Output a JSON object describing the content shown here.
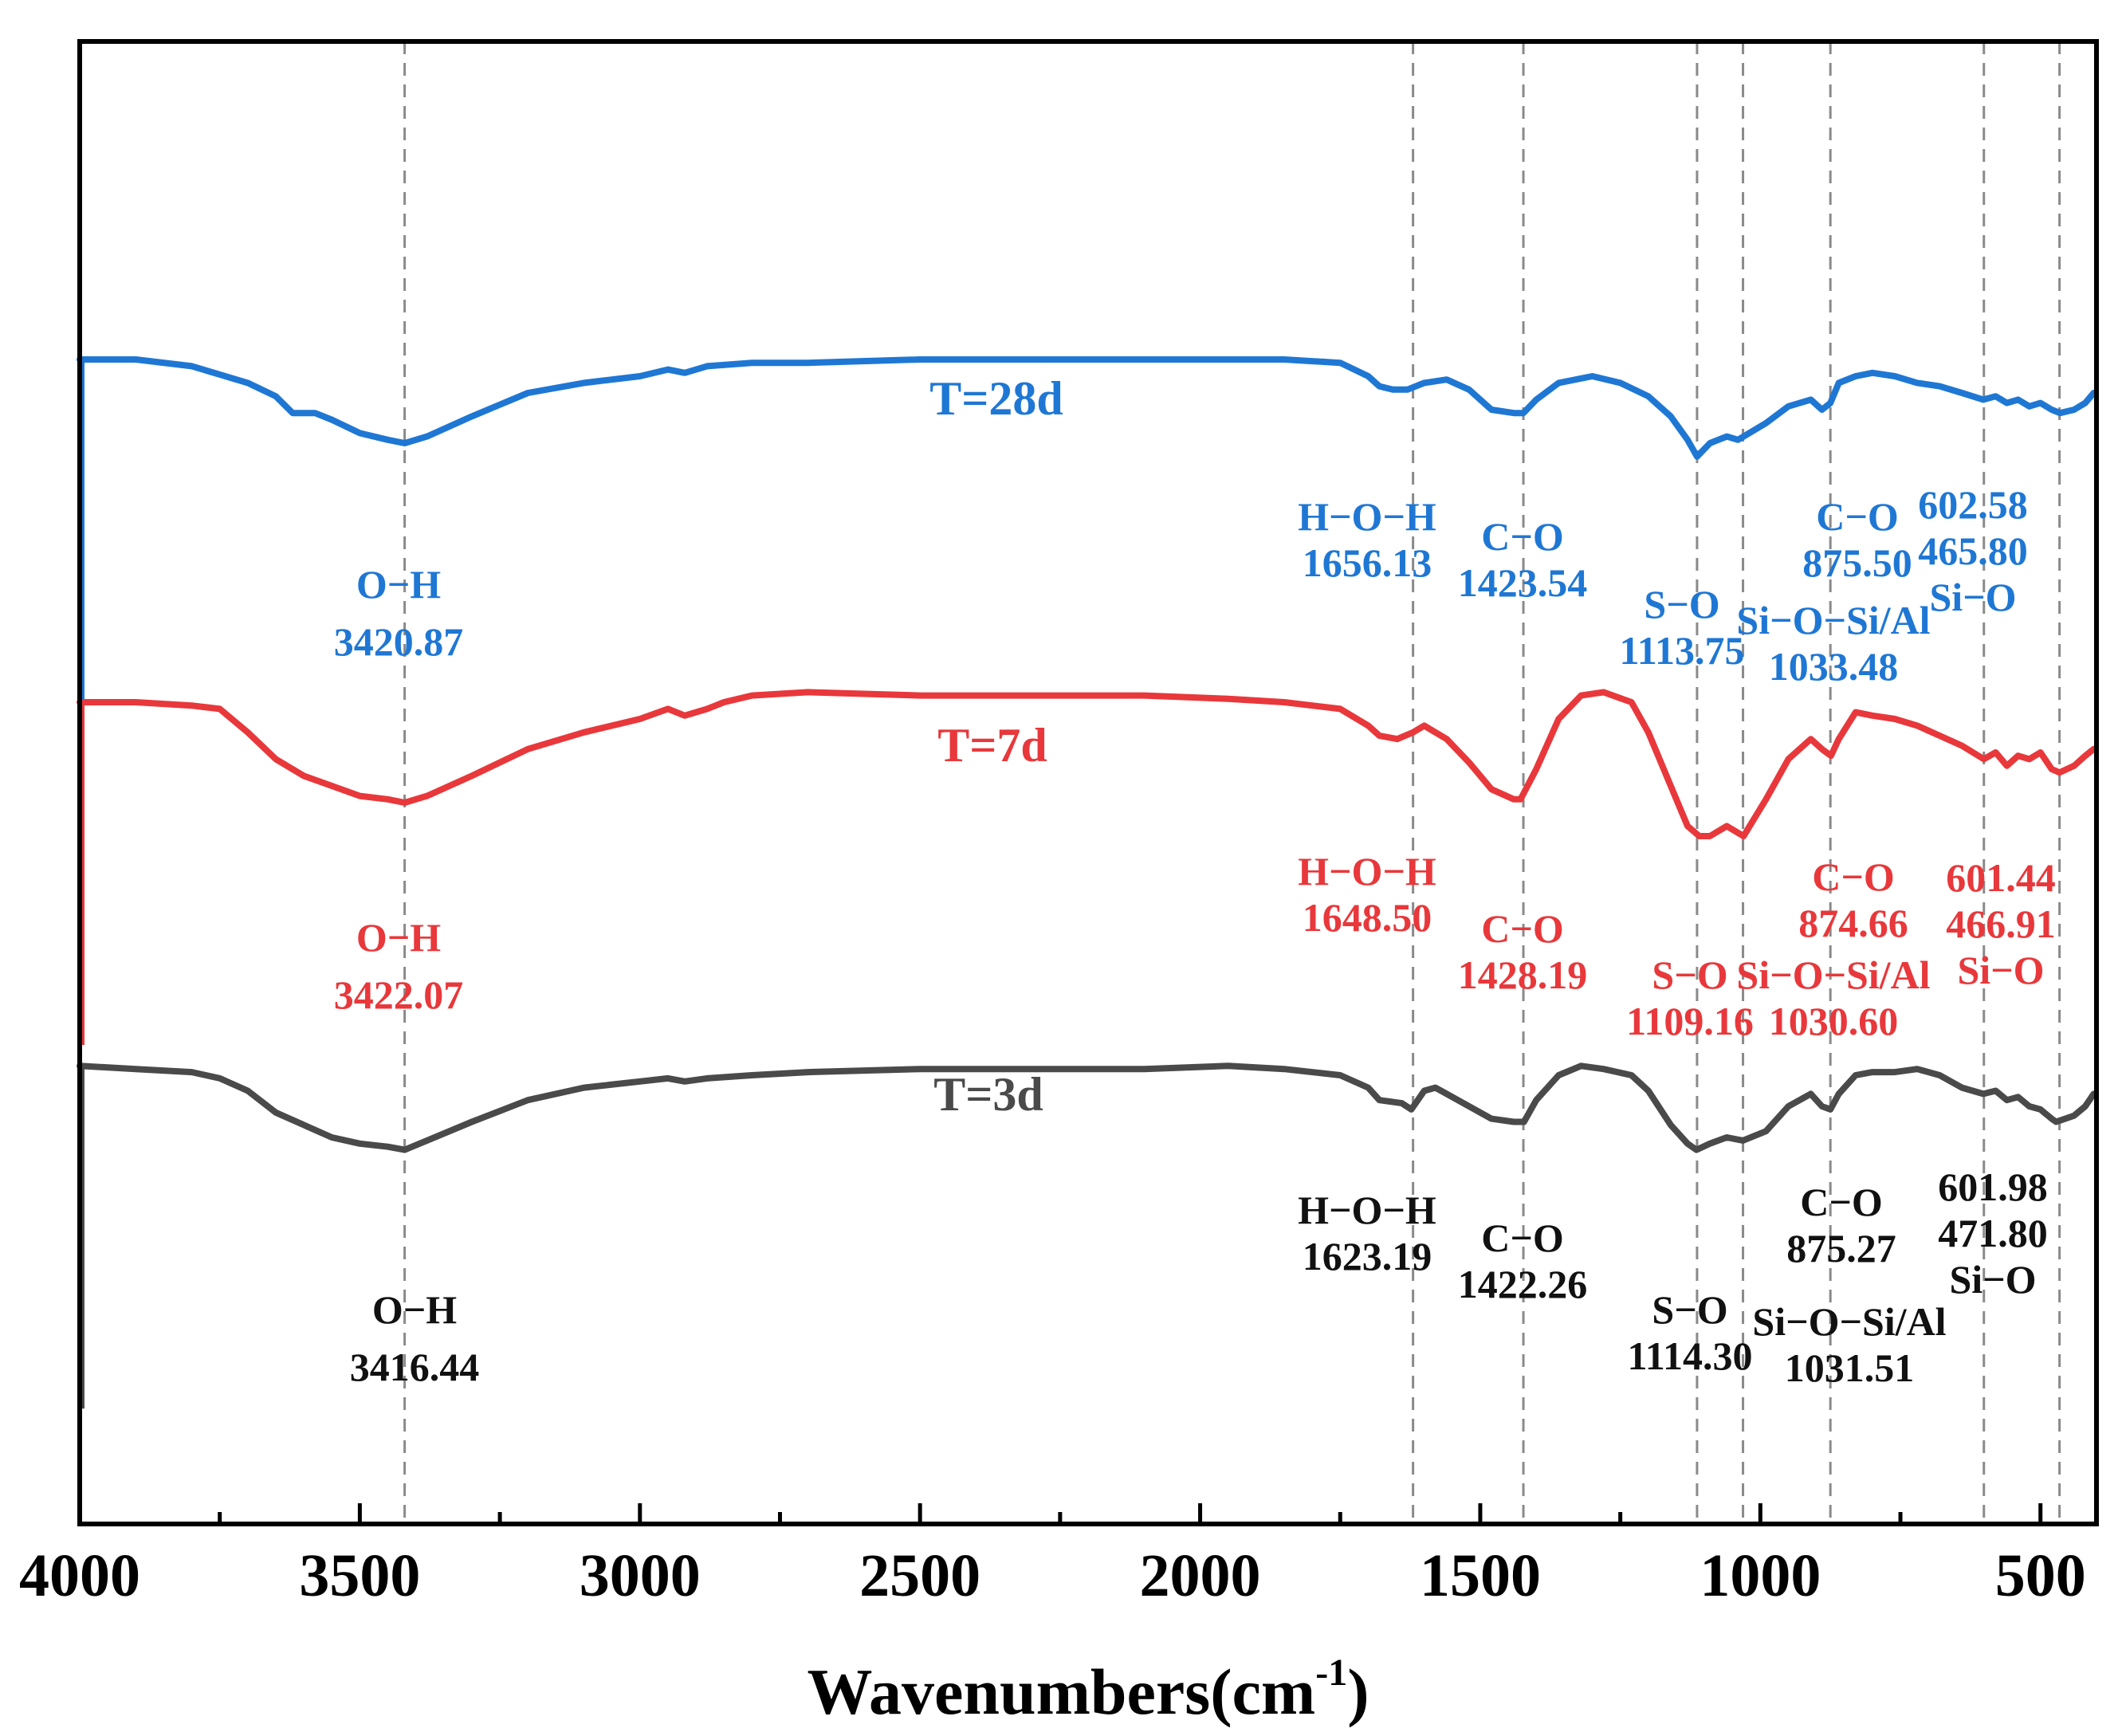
{
  "chart_data": {
    "type": "line",
    "title": "",
    "xlabel": "Wavenumbers(cm",
    "xlabel_sup": "-1",
    "xlabel_close": ")",
    "ylabel": "",
    "xlim": [
      4000,
      400
    ],
    "xticks": [
      4000,
      3500,
      3000,
      2500,
      2000,
      1500,
      1000,
      500
    ],
    "xtick_labels": [
      "4000",
      "3500",
      "3000",
      "2500",
      "2000",
      "1500",
      "1000",
      "500"
    ],
    "yaxis": "arbitrary transmittance (stacked, offset)",
    "reference_lines": [
      3420,
      1620,
      1423,
      1113,
      1031,
      875,
      601,
      466
    ],
    "series": [
      {
        "name": "T=28d",
        "color": "#1f77d4",
        "x": [
          4000,
          3900,
          3800,
          3700,
          3650,
          3620,
          3580,
          3550,
          3500,
          3450,
          3420,
          3380,
          3300,
          3200,
          3100,
          3000,
          2950,
          2920,
          2880,
          2800,
          2700,
          2500,
          2300,
          2100,
          1950,
          1850,
          1750,
          1700,
          1680,
          1656,
          1630,
          1600,
          1560,
          1520,
          1480,
          1440,
          1423,
          1400,
          1360,
          1300,
          1250,
          1200,
          1160,
          1130,
          1113,
          1090,
          1060,
          1040,
          1020,
          990,
          950,
          910,
          890,
          875,
          860,
          830,
          800,
          760,
          720,
          680,
          640,
          602,
          580,
          560,
          540,
          520,
          500,
          480,
          465,
          440,
          420,
          405
        ],
        "y": [
          0.95,
          0.95,
          0.93,
          0.88,
          0.84,
          0.79,
          0.79,
          0.77,
          0.73,
          0.71,
          0.7,
          0.72,
          0.78,
          0.85,
          0.88,
          0.9,
          0.92,
          0.91,
          0.93,
          0.94,
          0.94,
          0.95,
          0.95,
          0.95,
          0.95,
          0.95,
          0.94,
          0.9,
          0.87,
          0.86,
          0.86,
          0.88,
          0.89,
          0.86,
          0.8,
          0.79,
          0.79,
          0.83,
          0.88,
          0.9,
          0.88,
          0.84,
          0.78,
          0.71,
          0.66,
          0.7,
          0.72,
          0.71,
          0.73,
          0.76,
          0.81,
          0.83,
          0.8,
          0.82,
          0.88,
          0.9,
          0.91,
          0.9,
          0.88,
          0.87,
          0.85,
          0.83,
          0.84,
          0.82,
          0.83,
          0.81,
          0.82,
          0.8,
          0.79,
          0.8,
          0.82,
          0.85
        ]
      },
      {
        "name": "T=7d",
        "color": "#e8383b",
        "x": [
          4000,
          3900,
          3800,
          3750,
          3700,
          3650,
          3600,
          3550,
          3500,
          3450,
          3420,
          3380,
          3300,
          3200,
          3100,
          3000,
          2950,
          2920,
          2880,
          2850,
          2800,
          2700,
          2500,
          2300,
          2100,
          1950,
          1850,
          1750,
          1700,
          1680,
          1648,
          1620,
          1600,
          1580,
          1560,
          1520,
          1480,
          1440,
          1428,
          1400,
          1360,
          1320,
          1280,
          1230,
          1200,
          1160,
          1130,
          1109,
          1090,
          1060,
          1040,
          1030,
          990,
          950,
          910,
          890,
          874,
          860,
          830,
          800,
          760,
          720,
          680,
          640,
          601,
          580,
          560,
          540,
          520,
          500,
          480,
          466,
          440,
          420,
          405
        ],
        "y": [
          0.95,
          0.95,
          0.94,
          0.93,
          0.86,
          0.78,
          0.73,
          0.7,
          0.67,
          0.66,
          0.65,
          0.67,
          0.73,
          0.81,
          0.86,
          0.9,
          0.93,
          0.91,
          0.93,
          0.95,
          0.97,
          0.98,
          0.97,
          0.97,
          0.97,
          0.96,
          0.95,
          0.93,
          0.88,
          0.85,
          0.84,
          0.86,
          0.88,
          0.86,
          0.84,
          0.77,
          0.69,
          0.66,
          0.66,
          0.75,
          0.9,
          0.97,
          0.98,
          0.95,
          0.86,
          0.7,
          0.58,
          0.55,
          0.55,
          0.58,
          0.56,
          0.55,
          0.66,
          0.78,
          0.84,
          0.81,
          0.79,
          0.84,
          0.92,
          0.91,
          0.9,
          0.88,
          0.85,
          0.82,
          0.78,
          0.8,
          0.76,
          0.79,
          0.78,
          0.8,
          0.75,
          0.74,
          0.76,
          0.79,
          0.81
        ]
      },
      {
        "name": "T=3d",
        "color": "#4a4a4a",
        "x": [
          4000,
          3900,
          3800,
          3750,
          3700,
          3650,
          3600,
          3550,
          3500,
          3450,
          3420,
          3380,
          3300,
          3200,
          3100,
          3000,
          2950,
          2920,
          2880,
          2800,
          2700,
          2500,
          2300,
          2100,
          1950,
          1850,
          1750,
          1700,
          1680,
          1640,
          1623,
          1600,
          1580,
          1560,
          1520,
          1480,
          1440,
          1422,
          1400,
          1360,
          1320,
          1280,
          1230,
          1200,
          1160,
          1130,
          1114,
          1090,
          1060,
          1031,
          990,
          950,
          910,
          890,
          875,
          860,
          830,
          800,
          760,
          720,
          680,
          640,
          602,
          580,
          560,
          540,
          520,
          500,
          480,
          472,
          440,
          420,
          405
        ],
        "y": [
          0.93,
          0.92,
          0.91,
          0.89,
          0.85,
          0.78,
          0.74,
          0.7,
          0.68,
          0.67,
          0.66,
          0.69,
          0.75,
          0.82,
          0.86,
          0.88,
          0.89,
          0.88,
          0.89,
          0.9,
          0.91,
          0.92,
          0.92,
          0.92,
          0.93,
          0.92,
          0.9,
          0.86,
          0.82,
          0.81,
          0.79,
          0.85,
          0.86,
          0.84,
          0.8,
          0.76,
          0.75,
          0.75,
          0.82,
          0.9,
          0.93,
          0.92,
          0.9,
          0.85,
          0.74,
          0.68,
          0.66,
          0.68,
          0.7,
          0.69,
          0.72,
          0.8,
          0.84,
          0.8,
          0.79,
          0.84,
          0.9,
          0.91,
          0.91,
          0.92,
          0.9,
          0.86,
          0.84,
          0.85,
          0.82,
          0.83,
          0.8,
          0.79,
          0.76,
          0.75,
          0.77,
          0.8,
          0.84
        ]
      }
    ],
    "annotations": [
      {
        "series": "T=28d",
        "group": "OH",
        "lines": [
          "O−H",
          "3420.87"
        ]
      },
      {
        "series": "T=28d",
        "group": "HOH",
        "lines": [
          "H−O−H",
          "1656.13"
        ]
      },
      {
        "series": "T=28d",
        "group": "CO1",
        "lines": [
          "C−O",
          "1423.54"
        ]
      },
      {
        "series": "T=28d",
        "group": "SO",
        "lines": [
          "S−O",
          "1113.75"
        ]
      },
      {
        "series": "T=28d",
        "group": "SiOSiAl",
        "lines": [
          "Si−O−Si/Al",
          "1033.48"
        ]
      },
      {
        "series": "T=28d",
        "group": "CO2",
        "lines": [
          "C−O",
          "875.50"
        ]
      },
      {
        "series": "T=28d",
        "group": "SiO",
        "lines": [
          "602.58",
          "465.80",
          "Si−O"
        ]
      },
      {
        "series": "T=7d",
        "group": "OH",
        "lines": [
          "O−H",
          "3422.07"
        ]
      },
      {
        "series": "T=7d",
        "group": "HOH",
        "lines": [
          "H−O−H",
          "1648.50"
        ]
      },
      {
        "series": "T=7d",
        "group": "CO1",
        "lines": [
          "C−O",
          "1428.19"
        ]
      },
      {
        "series": "T=7d",
        "group": "SO",
        "lines": [
          "S−O",
          "1109.16"
        ]
      },
      {
        "series": "T=7d",
        "group": "SiOSiAl",
        "lines": [
          "Si−O−Si/Al",
          "1030.60"
        ]
      },
      {
        "series": "T=7d",
        "group": "CO2",
        "lines": [
          "C−O",
          "874.66"
        ]
      },
      {
        "series": "T=7d",
        "group": "SiO",
        "lines": [
          "601.44",
          "466.91",
          "Si−O"
        ]
      },
      {
        "series": "T=3d",
        "group": "OH",
        "lines": [
          "O−H",
          "3416.44"
        ]
      },
      {
        "series": "T=3d",
        "group": "HOH",
        "lines": [
          "H−O−H",
          "1623.19"
        ]
      },
      {
        "series": "T=3d",
        "group": "CO1",
        "lines": [
          "C−O",
          "1422.26"
        ]
      },
      {
        "series": "T=3d",
        "group": "SO",
        "lines": [
          "S−O",
          "1114.30"
        ]
      },
      {
        "series": "T=3d",
        "group": "SiOSiAl",
        "lines": [
          "Si−O−Si/Al",
          "1031.51"
        ]
      },
      {
        "series": "T=3d",
        "group": "CO2",
        "lines": [
          "C−O",
          "875.27"
        ]
      },
      {
        "series": "T=3d",
        "group": "SiO",
        "lines": [
          "601.98",
          "471.80",
          "Si−O"
        ]
      }
    ]
  }
}
